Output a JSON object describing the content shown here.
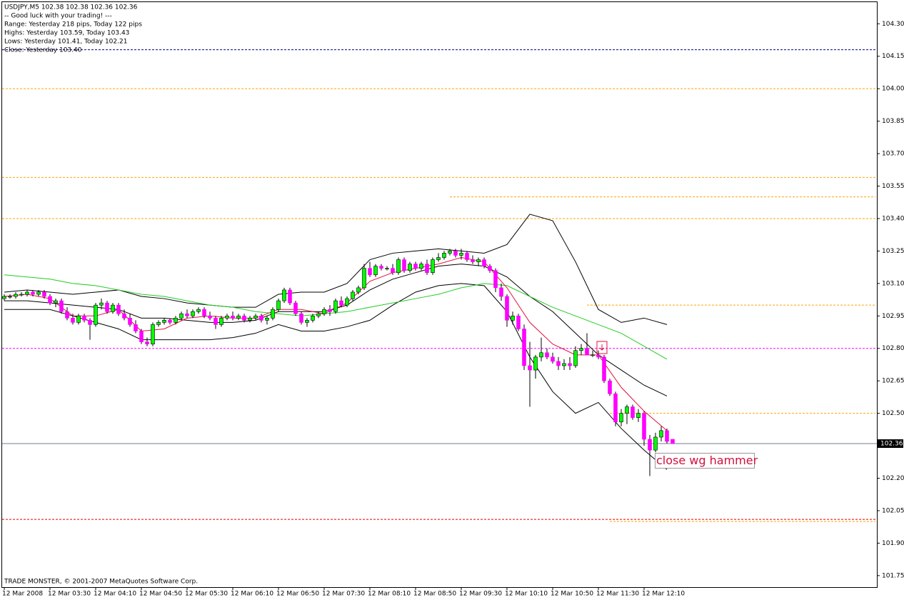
{
  "chart_data": {
    "type": "candlestick",
    "info_lines": [
      "USDJPY,M5  102.38 102.38 102.36 102.36",
      "-- Good luck with your trading! ---",
      "Range: Yesterday 218 pips, Today 122 pips",
      "Highs: Yesterday 103.59, Today 103.43",
      "Lows: Yesterday 101.41, Today 102.21",
      "Close: Yesterday 103.40"
    ],
    "copyright": "TRADE MONSTER, © 2001-2007 MetaQuotes Software Corp.",
    "annotation": "close wg hammer",
    "categories": [
      "12 Mar 2008",
      null,
      null,
      null,
      null,
      null,
      null,
      null,
      "12 Mar 03:30",
      null,
      null,
      null,
      null,
      null,
      null,
      null,
      "12 Mar 04:10",
      null,
      null,
      null,
      null,
      null,
      null,
      null,
      "12 Mar 04:50",
      null,
      null,
      null,
      null,
      null,
      null,
      null,
      "12 Mar 05:30",
      null,
      null,
      null,
      null,
      null,
      null,
      null,
      "12 Mar 06:10",
      null,
      null,
      null,
      null,
      null,
      null,
      null,
      "12 Mar 06:50",
      null,
      null,
      null,
      null,
      null,
      null,
      null,
      "12 Mar 07:30",
      null,
      null,
      null,
      null,
      null,
      null,
      null,
      "12 Mar 08:10",
      null,
      null,
      null,
      null,
      null,
      null,
      null,
      "12 Mar 08:50",
      null,
      null,
      null,
      null,
      null,
      null,
      null,
      "12 Mar 09:30",
      null,
      null,
      null,
      null,
      null,
      null,
      null,
      "12 Mar 10:10",
      null,
      null,
      null,
      null,
      null,
      null,
      null,
      "12 Mar 10:50",
      null,
      null,
      null,
      null,
      null,
      null,
      null,
      "12 Mar 11:30",
      null,
      null,
      null,
      null,
      null,
      null,
      null,
      "12 Mar 12:10",
      null,
      null,
      null,
      null,
      null
    ],
    "open": [
      103.03,
      103.04,
      103.04,
      103.05,
      103.05,
      103.06,
      103.05,
      103.06,
      103.04,
      103.01,
      103.02,
      102.97,
      102.94,
      102.92,
      102.95,
      102.93,
      102.91,
      103.0,
      103.01,
      102.97,
      103.0,
      102.96,
      102.94,
      102.91,
      102.88,
      102.83,
      102.82,
      102.91,
      102.92,
      102.93,
      102.92,
      102.94,
      102.96,
      102.95,
      102.97,
      102.98,
      102.95,
      102.94,
      102.91,
      102.94,
      102.95,
      102.94,
      102.95,
      102.93,
      102.94,
      102.95,
      102.93,
      102.94,
      102.98,
      103.02,
      103.07,
      103.01,
      102.96,
      102.92,
      102.93,
      102.95,
      102.96,
      102.98,
      102.97,
      103.02,
      103.0,
      103.03,
      103.06,
      103.08,
      103.17,
      103.14,
      103.18,
      103.17,
      103.17,
      103.15,
      103.21,
      103.16,
      103.19,
      103.17,
      103.19,
      103.15,
      103.21,
      103.22,
      103.24,
      103.25,
      103.23,
      103.24,
      103.21,
      103.2,
      103.21,
      103.18,
      103.16,
      103.08,
      103.04,
      102.93,
      102.95,
      102.89,
      102.72,
      102.7,
      102.76,
      102.78,
      102.76,
      102.74,
      102.72,
      102.73,
      102.72,
      102.79,
      102.8,
      102.77,
      102.77,
      102.76,
      102.65,
      102.59,
      102.46,
      102.5,
      102.53,
      102.48,
      102.5,
      102.38,
      102.33,
      102.39,
      102.42,
      102.38
    ],
    "high": [
      103.05,
      103.05,
      103.06,
      103.06,
      103.07,
      103.07,
      103.07,
      103.07,
      103.05,
      103.03,
      103.03,
      102.99,
      102.96,
      102.96,
      102.96,
      102.94,
      103.01,
      103.03,
      103.02,
      103.01,
      103.01,
      102.98,
      102.96,
      102.93,
      102.89,
      102.85,
      102.92,
      102.93,
      102.94,
      102.94,
      102.95,
      102.97,
      102.98,
      102.98,
      102.99,
      102.99,
      102.97,
      102.95,
      102.95,
      102.96,
      102.97,
      102.96,
      102.96,
      102.95,
      102.96,
      102.96,
      102.95,
      102.99,
      103.03,
      103.08,
      103.08,
      103.02,
      102.97,
      102.94,
      102.96,
      102.97,
      102.99,
      103.0,
      103.03,
      103.04,
      103.04,
      103.07,
      103.09,
      103.19,
      103.2,
      103.19,
      103.19,
      103.18,
      103.19,
      103.22,
      103.22,
      103.2,
      103.2,
      103.2,
      103.21,
      103.22,
      103.24,
      103.25,
      103.26,
      103.26,
      103.26,
      103.25,
      103.23,
      103.22,
      103.22,
      103.19,
      103.17,
      103.1,
      103.05,
      102.97,
      102.96,
      102.91,
      102.83,
      102.77,
      102.85,
      102.8,
      102.78,
      102.76,
      102.75,
      102.76,
      102.81,
      102.82,
      102.87,
      102.79,
      102.79,
      102.77,
      102.66,
      102.6,
      102.52,
      102.54,
      102.54,
      102.52,
      102.51,
      102.4,
      102.41,
      102.44,
      102.43,
      102.38
    ],
    "low": [
      103.02,
      103.03,
      103.03,
      103.04,
      103.04,
      103.04,
      103.04,
      103.03,
      103.0,
      102.99,
      102.96,
      102.93,
      102.91,
      102.91,
      102.92,
      102.84,
      102.9,
      102.98,
      102.96,
      102.96,
      102.95,
      102.93,
      102.9,
      102.87,
      102.82,
      102.81,
      102.81,
      102.9,
      102.91,
      102.91,
      102.91,
      102.93,
      102.94,
      102.94,
      102.96,
      102.94,
      102.93,
      102.89,
      102.9,
      102.93,
      102.93,
      102.93,
      102.92,
      102.92,
      102.93,
      102.92,
      102.91,
      102.93,
      102.97,
      103.01,
      103.0,
      102.95,
      102.91,
      102.9,
      102.92,
      102.94,
      102.95,
      102.95,
      102.96,
      102.99,
      102.99,
      103.02,
      103.05,
      103.07,
      103.13,
      103.13,
      103.16,
      103.16,
      103.14,
      103.14,
      103.15,
      103.15,
      103.16,
      103.16,
      103.14,
      103.14,
      103.2,
      103.21,
      103.23,
      103.22,
      103.21,
      103.2,
      103.19,
      103.18,
      103.17,
      103.15,
      103.06,
      103.02,
      102.9,
      102.91,
      102.88,
      102.7,
      102.53,
      102.66,
      102.74,
      102.75,
      102.73,
      102.7,
      102.7,
      102.7,
      102.71,
      102.77,
      102.78,
      102.76,
      102.75,
      102.64,
      102.58,
      102.44,
      102.44,
      102.45,
      102.47,
      102.46,
      102.35,
      102.21,
      102.32,
      102.37,
      102.36,
      102.36
    ],
    "close": [
      103.04,
      103.04,
      103.05,
      103.05,
      103.06,
      103.05,
      103.06,
      103.04,
      103.01,
      103.02,
      102.97,
      102.94,
      102.92,
      102.95,
      102.93,
      102.91,
      103.0,
      103.01,
      102.97,
      103.0,
      102.96,
      102.94,
      102.91,
      102.88,
      102.83,
      102.82,
      102.91,
      102.92,
      102.93,
      102.92,
      102.94,
      102.96,
      102.95,
      102.97,
      102.98,
      102.95,
      102.94,
      102.91,
      102.94,
      102.95,
      102.94,
      102.95,
      102.93,
      102.94,
      102.95,
      102.93,
      102.94,
      102.98,
      103.02,
      103.07,
      103.01,
      102.96,
      102.92,
      102.93,
      102.95,
      102.96,
      102.98,
      102.97,
      103.02,
      103.0,
      103.03,
      103.06,
      103.08,
      103.17,
      103.14,
      103.18,
      103.17,
      103.17,
      103.15,
      103.21,
      103.16,
      103.19,
      103.17,
      103.19,
      103.15,
      103.21,
      103.22,
      103.24,
      103.25,
      103.23,
      103.24,
      103.21,
      103.2,
      103.21,
      103.18,
      103.16,
      103.08,
      103.04,
      102.93,
      102.95,
      102.89,
      102.72,
      102.7,
      102.76,
      102.78,
      102.76,
      102.74,
      102.72,
      102.73,
      102.72,
      102.79,
      102.8,
      102.77,
      102.77,
      102.76,
      102.65,
      102.59,
      102.46,
      102.5,
      102.53,
      102.48,
      102.5,
      102.38,
      102.33,
      102.39,
      102.42,
      102.37,
      102.36
    ],
    "bull_color": "#00ff00",
    "bear_color": "#ff00ff",
    "overlay_x": [
      0,
      4,
      8,
      12,
      16,
      20,
      24,
      28,
      32,
      36,
      40,
      44,
      48,
      52,
      56,
      60,
      64,
      68,
      72,
      76,
      80,
      84,
      88,
      92,
      96,
      100,
      104,
      108,
      112,
      116
    ],
    "overlays": [
      {
        "color": "#000000",
        "values": [
          103.06,
          103.07,
          103.06,
          103.05,
          103.06,
          103.07,
          103.04,
          103.03,
          103.01,
          103.0,
          102.99,
          102.99,
          103.05,
          103.06,
          103.06,
          103.1,
          103.21,
          103.24,
          103.25,
          103.26,
          103.25,
          103.24,
          103.28,
          103.42,
          103.39,
          103.2,
          102.98,
          102.92,
          102.94,
          102.91
        ]
      },
      {
        "color": "#000000",
        "values": [
          102.98,
          102.98,
          102.98,
          102.95,
          102.92,
          102.89,
          102.84,
          102.84,
          102.84,
          102.84,
          102.85,
          102.87,
          102.91,
          102.88,
          102.88,
          102.9,
          102.93,
          103.0,
          103.06,
          103.09,
          103.1,
          103.09,
          102.97,
          102.76,
          102.6,
          102.5,
          102.55,
          102.43,
          102.33,
          102.24
        ]
      },
      {
        "color": "#000000",
        "values": [
          103.02,
          103.02,
          103.01,
          103.0,
          102.99,
          102.98,
          102.94,
          102.94,
          102.93,
          102.92,
          102.92,
          102.93,
          102.97,
          102.97,
          102.97,
          103.0,
          103.07,
          103.12,
          103.15,
          103.18,
          103.19,
          103.18,
          103.13,
          103.04,
          102.97,
          102.87,
          102.77,
          102.7,
          102.63,
          102.58
        ]
      },
      {
        "color": "#22cc22",
        "values": [
          103.14,
          103.13,
          103.12,
          103.1,
          103.09,
          103.07,
          103.05,
          103.04,
          103.02,
          103.0,
          102.99,
          102.97,
          102.96,
          102.95,
          102.96,
          102.97,
          102.99,
          103.01,
          103.03,
          103.05,
          103.08,
          103.1,
          103.09,
          103.04,
          102.99,
          102.95,
          102.91,
          102.87,
          102.81,
          102.75
        ]
      },
      {
        "color": "#e0103c",
        "values": [
          103.04,
          103.05,
          103.03,
          102.95,
          102.95,
          102.98,
          102.88,
          102.89,
          102.94,
          102.95,
          102.94,
          102.94,
          102.98,
          102.98,
          102.96,
          103.01,
          103.11,
          103.15,
          103.17,
          103.19,
          103.22,
          103.2,
          103.08,
          102.92,
          102.82,
          102.77,
          102.77,
          102.62,
          102.51,
          102.42
        ]
      }
    ],
    "levels": [
      {
        "value": 104.18,
        "color": "#000080",
        "start": 0
      },
      {
        "value": 104.0,
        "color": "#ffa500",
        "start": 0
      },
      {
        "value": 103.59,
        "color": "#ffa500",
        "start": 0
      },
      {
        "value": 103.5,
        "color": "#ffa500",
        "start": 78
      },
      {
        "value": 103.4,
        "color": "#ffa500",
        "start": 0
      },
      {
        "value": 103.0,
        "color": "#ffa500",
        "start": 102
      },
      {
        "value": 102.8,
        "color": "#ff00ff",
        "start": 0
      },
      {
        "value": 102.5,
        "color": "#ffa500",
        "start": 106
      },
      {
        "value": 102.01,
        "color": "#e00000",
        "start": 0
      },
      {
        "value": 102.0,
        "color": "#ffa500",
        "start": 106
      }
    ],
    "last_price": 102.36,
    "last_price_color": "#708090",
    "ylim": [
      101.7,
      104.4
    ],
    "yticks": [
      101.75,
      {
        "value": 101.9,
        "label": "101.90"
      },
      102.05,
      {
        "value": 102.2,
        "label": "102.20"
      },
      {
        "value": 102.5,
        "label": "102.50"
      },
      102.65,
      {
        "value": 102.8,
        "label": "102.80"
      },
      102.95,
      {
        "value": 103.1,
        "label": "103.10"
      },
      103.25,
      {
        "value": 103.4,
        "label": "103.40"
      },
      103.55,
      {
        "value": 103.7,
        "label": "103.70"
      },
      103.85,
      {
        "value": 104.0,
        "label": "104.00"
      },
      104.15,
      {
        "value": 104.3,
        "label": "104.30"
      }
    ]
  }
}
